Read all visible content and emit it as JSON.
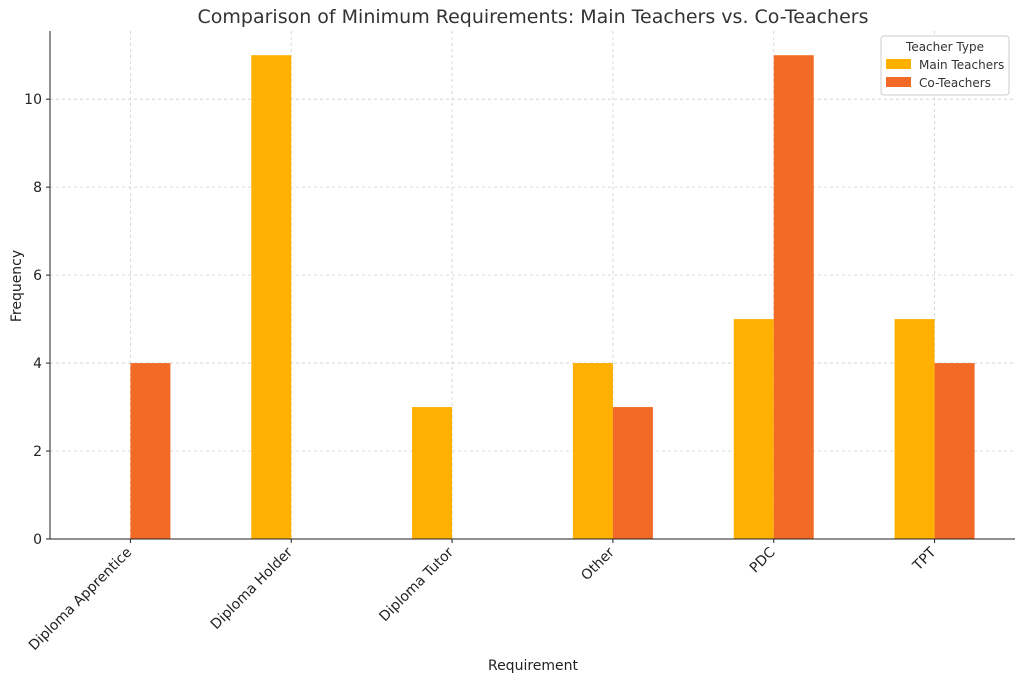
{
  "chart_data": {
    "type": "bar",
    "title": "Comparison of Minimum Requirements: Main Teachers vs. Co-Teachers",
    "xlabel": "Requirement",
    "ylabel": "Frequency",
    "categories": [
      "Diploma Apprentice",
      "Diploma Holder",
      "Diploma Tutor",
      "Other",
      "PDC",
      "TPT"
    ],
    "series": [
      {
        "name": "Main Teachers",
        "values": [
          0,
          11,
          3,
          4,
          5,
          5
        ],
        "color": "#FFB000"
      },
      {
        "name": "Co-Teachers",
        "values": [
          4,
          0,
          0,
          3,
          11,
          4
        ],
        "color": "#F26B26"
      }
    ],
    "yticks": [
      "0",
      "2",
      "4",
      "6",
      "8",
      "10"
    ],
    "ylim": [
      0,
      11.55
    ],
    "grid": true,
    "legend": {
      "title": "Teacher Type",
      "placement": "top-right"
    }
  }
}
